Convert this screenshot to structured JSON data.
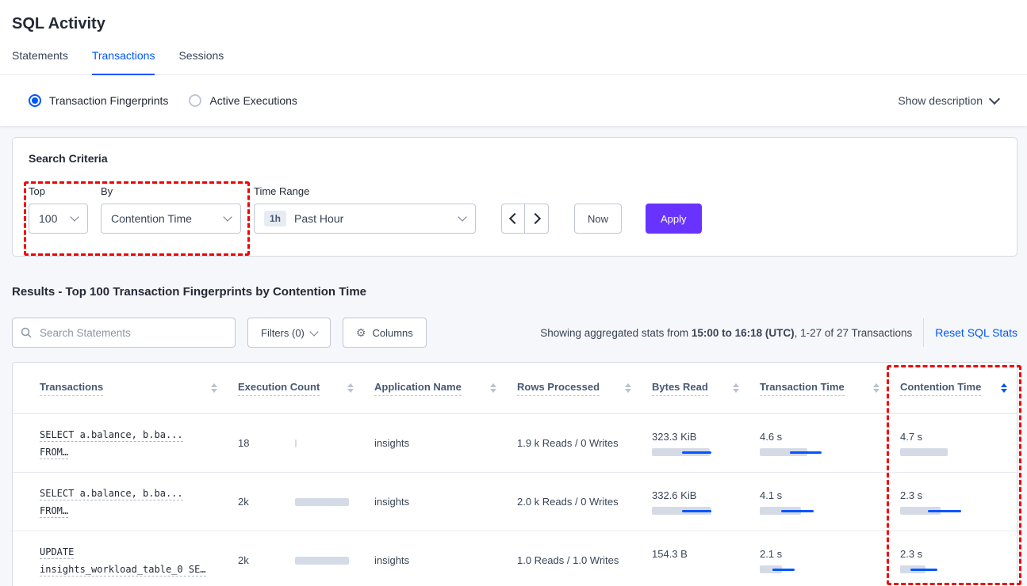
{
  "page_title": "SQL Activity",
  "tabs": [
    {
      "label": "Statements",
      "active": false
    },
    {
      "label": "Transactions",
      "active": true
    },
    {
      "label": "Sessions",
      "active": false
    }
  ],
  "view_toggle": {
    "fingerprints_label": "Transaction Fingerprints",
    "fingerprints_selected": true,
    "active_executions_label": "Active Executions",
    "active_executions_selected": false,
    "show_description_label": "Show description"
  },
  "search_criteria": {
    "heading": "Search Criteria",
    "top_label": "Top",
    "top_value": "100",
    "by_label": "By",
    "by_value": "Contention Time",
    "time_range_label": "Time Range",
    "time_range_badge": "1h",
    "time_range_value": "Past Hour",
    "now_label": "Now",
    "apply_label": "Apply"
  },
  "results": {
    "heading": "Results - Top 100 Transaction Fingerprints by Contention Time",
    "search_placeholder": "Search Statements",
    "filters_label": "Filters (0)",
    "columns_label": "Columns",
    "stats_text_prefix": "Showing aggregated stats from ",
    "stats_text_bold": "15:00 to 16:18 (UTC)",
    "stats_text_suffix": ", 1-27 of 27 Transactions",
    "reset_link": "Reset SQL Stats"
  },
  "table": {
    "headers": [
      {
        "label": "Transactions",
        "sorted": null
      },
      {
        "label": "Execution Count",
        "sorted": null
      },
      {
        "label": "Application Name",
        "sorted": null
      },
      {
        "label": "Rows Processed",
        "sorted": null
      },
      {
        "label": "Bytes Read",
        "sorted": null
      },
      {
        "label": "Transaction Time",
        "sorted": null
      },
      {
        "label": "Contention Time",
        "sorted": "desc"
      }
    ],
    "rows": [
      {
        "transaction_line1": "SELECT a.balance, b.ba...",
        "transaction_line2": "FROM…",
        "execution_count": "18",
        "exec_bar": {
          "bar": 2,
          "dev_start": 0,
          "dev_width": 0
        },
        "application_name": "insights",
        "rows_processed": "1.9 k Reads / 0 Writes",
        "bytes_read": "323.3 KiB",
        "bytes_bar": {
          "bar": 73,
          "dev_start": 38,
          "dev_width": 37
        },
        "transaction_time": "4.6 s",
        "txn_bar": {
          "bar": 60,
          "dev_start": 38,
          "dev_width": 40
        },
        "contention_time": "4.7 s",
        "contention_bar": {
          "bar": 60,
          "dev_start": 0,
          "dev_width": 0
        }
      },
      {
        "transaction_line1": "SELECT a.balance, b.ba...",
        "transaction_line2": "FROM…",
        "execution_count": "2k",
        "exec_bar": {
          "bar": 68,
          "dev_start": 0,
          "dev_width": 0
        },
        "application_name": "insights",
        "rows_processed": "2.0 k Reads / 0 Writes",
        "bytes_read": "332.6 KiB",
        "bytes_bar": {
          "bar": 75,
          "dev_start": 38,
          "dev_width": 37
        },
        "transaction_time": "4.1 s",
        "txn_bar": {
          "bar": 52,
          "dev_start": 27,
          "dev_width": 41
        },
        "contention_time": "2.3 s",
        "contention_bar": {
          "bar": 51,
          "dev_start": 35,
          "dev_width": 42
        }
      },
      {
        "transaction_line1": "UPDATE",
        "transaction_line2": "insights_workload_table_0 SE…",
        "execution_count": "2k",
        "exec_bar": {
          "bar": 68,
          "dev_start": 0,
          "dev_width": 0
        },
        "application_name": "insights",
        "rows_processed": "1.0 Reads / 1.0 Writes",
        "bytes_read": "154.3 B",
        "bytes_bar": {
          "bar": 0,
          "dev_start": 0,
          "dev_width": 0
        },
        "transaction_time": "2.1 s",
        "txn_bar": {
          "bar": 28,
          "dev_start": 16,
          "dev_width": 28
        },
        "contention_time": "2.3 s",
        "contention_bar": {
          "bar": 32,
          "dev_start": 13,
          "dev_width": 34
        }
      }
    ]
  },
  "icons": {
    "gear_glyph": "⚙"
  },
  "colors": {
    "accent_blue": "#0055ff",
    "apply_purple": "#6933ff",
    "annotation_red": "#f40000",
    "bar_gray": "#d5dbe6"
  }
}
